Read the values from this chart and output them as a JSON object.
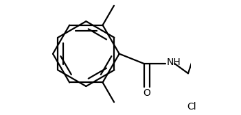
{
  "bg_color": "#ffffff",
  "line_color": "#000000",
  "lw": 1.6,
  "fs": 10,
  "r": 0.28,
  "figsize": [
    3.51,
    1.68
  ],
  "dpi": 100,
  "xlim": [
    0.0,
    1.15
  ],
  "ylim": [
    0.05,
    0.98
  ]
}
